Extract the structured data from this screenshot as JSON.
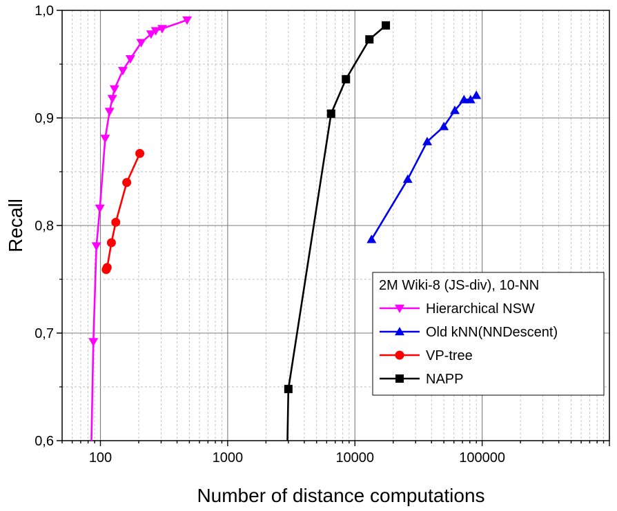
{
  "chart_data": {
    "type": "line",
    "xlabel": "Number of distance computations",
    "ylabel": "Recall",
    "x_scale": "log",
    "xlim": [
      50,
      1000000
    ],
    "ylim": [
      0.6,
      1.0
    ],
    "y_ticks": [
      0.6,
      0.7,
      0.8,
      0.9,
      1.0
    ],
    "y_tick_labels": [
      "0,6",
      "0,7",
      "0,8",
      "0,9",
      "1,0"
    ],
    "x_ticks": [
      100,
      1000,
      10000,
      100000
    ],
    "x_tick_labels": [
      "100",
      "1000",
      "10000",
      "100000"
    ],
    "grid": true,
    "legend_title": "2M Wiki-8 (JS-div), 10-NN",
    "legend_position": "lower-right",
    "series": [
      {
        "name": "Hierarchical NSW",
        "color": "#ff00ff",
        "marker": "triangle-down",
        "points": [
          {
            "x": 85,
            "y": 0.6,
            "marker": false
          },
          {
            "x": 88,
            "y": 0.692
          },
          {
            "x": 93,
            "y": 0.781
          },
          {
            "x": 99,
            "y": 0.816
          },
          {
            "x": 109,
            "y": 0.881
          },
          {
            "x": 118,
            "y": 0.906
          },
          {
            "x": 124,
            "y": 0.918
          },
          {
            "x": 129,
            "y": 0.927
          },
          {
            "x": 150,
            "y": 0.944
          },
          {
            "x": 172,
            "y": 0.955
          },
          {
            "x": 209,
            "y": 0.97
          },
          {
            "x": 250,
            "y": 0.978
          },
          {
            "x": 272,
            "y": 0.981
          },
          {
            "x": 306,
            "y": 0.983
          },
          {
            "x": 480,
            "y": 0.991
          }
        ]
      },
      {
        "name": "Old kNN(NNDescent)",
        "color": "#0000ee",
        "marker": "triangle-up",
        "points": [
          {
            "x": 13500,
            "y": 0.787
          },
          {
            "x": 26000,
            "y": 0.843
          },
          {
            "x": 37000,
            "y": 0.878
          },
          {
            "x": 50000,
            "y": 0.892
          },
          {
            "x": 61000,
            "y": 0.907
          },
          {
            "x": 72000,
            "y": 0.917
          },
          {
            "x": 81000,
            "y": 0.917
          },
          {
            "x": 90000,
            "y": 0.921
          }
        ]
      },
      {
        "name": "VP-tree",
        "color": "#ff0000",
        "marker": "circle",
        "points": [
          {
            "x": 111,
            "y": 0.759
          },
          {
            "x": 113,
            "y": 0.761
          },
          {
            "x": 122,
            "y": 0.784
          },
          {
            "x": 132,
            "y": 0.803
          },
          {
            "x": 161,
            "y": 0.84
          },
          {
            "x": 204,
            "y": 0.867
          }
        ]
      },
      {
        "name": "NAPP",
        "color": "#000000",
        "marker": "square",
        "points": [
          {
            "x": 2950,
            "y": 0.6,
            "marker": false
          },
          {
            "x": 3000,
            "y": 0.648
          },
          {
            "x": 6500,
            "y": 0.904
          },
          {
            "x": 8500,
            "y": 0.936
          },
          {
            "x": 13000,
            "y": 0.973
          },
          {
            "x": 17500,
            "y": 0.986
          }
        ]
      }
    ]
  }
}
